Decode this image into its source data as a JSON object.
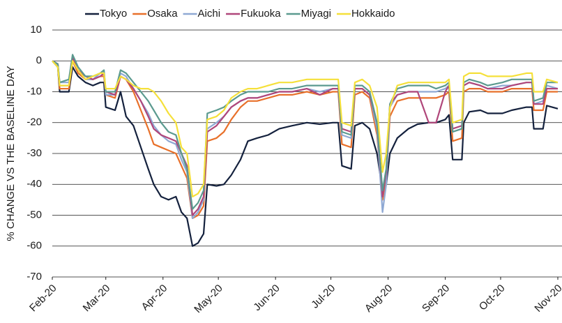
{
  "chart_data": {
    "type": "line",
    "y_label": "% CHANGE VS THE BASELINE DAY",
    "x": [
      0,
      3,
      4,
      9,
      11,
      14,
      18,
      22,
      26,
      28,
      29,
      34,
      37,
      40,
      44,
      48,
      52,
      55,
      59,
      63,
      67,
      70,
      73,
      76,
      79,
      82,
      84,
      89,
      93,
      97,
      102,
      106,
      111,
      117,
      123,
      130,
      138,
      145,
      152,
      155,
      157,
      162,
      164,
      168,
      172,
      176,
      179,
      181,
      183,
      187,
      193,
      198,
      204,
      208,
      213,
      215,
      217,
      222,
      223,
      226,
      232,
      236,
      244,
      249,
      257,
      260,
      261,
      266,
      268,
      274
    ],
    "xlim": [
      0,
      274
    ],
    "xticks": [
      {
        "value": 0,
        "label": "Feb-20"
      },
      {
        "value": 29,
        "label": "Mar-20"
      },
      {
        "value": 60,
        "label": "Apr-20"
      },
      {
        "value": 90,
        "label": "May-20"
      },
      {
        "value": 121,
        "label": "Jun-20"
      },
      {
        "value": 151,
        "label": "Jul-20"
      },
      {
        "value": 182,
        "label": "Aug-20"
      },
      {
        "value": 213,
        "label": "Sep-20"
      },
      {
        "value": 243,
        "label": "Oct-20"
      },
      {
        "value": 274,
        "label": "Nov-20"
      }
    ],
    "ylim": [
      -70,
      10
    ],
    "yticks": [
      -70,
      -60,
      -50,
      -40,
      -30,
      -20,
      -10,
      0,
      10
    ],
    "grid": true,
    "legend": "top",
    "series": [
      {
        "name": "Tokyo",
        "color": "#14213d",
        "values": [
          0,
          -2,
          -10,
          -10,
          -2,
          -5,
          -7,
          -8,
          -7,
          -7,
          -15,
          -16,
          -10,
          -18,
          -21,
          -28,
          -35,
          -40,
          -44,
          -45,
          -44,
          -49,
          -51,
          -60,
          -59,
          -56,
          -40,
          -40.5,
          -40,
          -37,
          -32,
          -26,
          -25,
          -24,
          -22,
          -21,
          -20,
          -20.5,
          -20,
          -20,
          -34,
          -35,
          -21,
          -20,
          -22,
          -30,
          -42,
          -40,
          -30,
          -25,
          -22,
          -20.5,
          -20,
          -20,
          -19,
          -17.5,
          -32,
          -32,
          -20,
          -16.5,
          -16,
          -17,
          -17,
          -16,
          -15,
          -15,
          -22,
          -22,
          -14.5,
          -15.5
        ]
      },
      {
        "name": "Osaka",
        "color": "#e8702a",
        "values": [
          0,
          -1,
          -9,
          -9,
          0,
          -4,
          -6,
          -6,
          -5,
          -5,
          -11,
          -12,
          -5,
          -6,
          -10,
          -16,
          -22,
          -27,
          -28,
          -29,
          -30,
          -34,
          -38,
          -51,
          -50,
          -47,
          -26,
          -25,
          -23,
          -19,
          -15,
          -13,
          -13,
          -12,
          -11,
          -11,
          -10,
          -11,
          -10,
          -10,
          -27,
          -28,
          -11,
          -10,
          -12,
          -24,
          -45,
          -38,
          -18,
          -13,
          -12,
          -12,
          -12,
          -12,
          -11,
          -10,
          -26,
          -25,
          -10,
          -9,
          -9,
          -10,
          -10,
          -9,
          -9,
          -9,
          -16,
          -16,
          -10,
          -10
        ]
      },
      {
        "name": "Aichi",
        "color": "#8fa9d4",
        "values": [
          0,
          -1,
          -7,
          -7,
          1,
          -3,
          -6,
          -6,
          -4,
          -4,
          -11,
          -11,
          -4,
          -5,
          -9,
          -13,
          -17,
          -21,
          -24,
          -26,
          -27,
          -32,
          -36,
          -51,
          -49,
          -45,
          -22,
          -20,
          -18,
          -15,
          -13,
          -12,
          -12,
          -11,
          -10,
          -10,
          -9,
          -10,
          -9,
          -9,
          -24,
          -25,
          -9,
          -9,
          -11,
          -22,
          -49,
          -40,
          -15,
          -11,
          -10,
          -10,
          -10,
          -10,
          -9,
          -8,
          -23,
          -22,
          -8,
          -7,
          -8,
          -9,
          -8,
          -8,
          -7,
          -7,
          -14,
          -13,
          -8,
          -9
        ]
      },
      {
        "name": "Fukuoka",
        "color": "#b0467a",
        "values": [
          0,
          -1,
          -8,
          -8,
          1,
          -3,
          -5,
          -6,
          -5,
          -4,
          -10,
          -11,
          -5,
          -6,
          -9,
          -13,
          -18,
          -22,
          -24,
          -25,
          -26,
          -30,
          -34,
          -50,
          -48,
          -44,
          -23,
          -21,
          -18,
          -15,
          -13,
          -12,
          -12,
          -11,
          -10,
          -10,
          -9,
          -11,
          -9,
          -9,
          -22,
          -23,
          -9,
          -9,
          -11,
          -20,
          -44,
          -36,
          -14,
          -11,
          -10,
          -10,
          -20,
          -20,
          -10,
          -8,
          -22,
          -21,
          -8,
          -7,
          -8,
          -9,
          -9,
          -8,
          -7,
          -7,
          -14,
          -14,
          -9,
          -9
        ]
      },
      {
        "name": "Miyagi",
        "color": "#5b9a8f",
        "values": [
          0,
          -1,
          -7,
          -6,
          2,
          -2,
          -5,
          -5,
          -4,
          -3,
          -10,
          -10,
          -3,
          -4,
          -7,
          -10,
          -13,
          -16,
          -20,
          -23,
          -24,
          -30,
          -35,
          -48,
          -46,
          -42,
          -17,
          -16,
          -15,
          -13,
          -11,
          -10,
          -10,
          -10,
          -9,
          -9,
          -8,
          -8,
          -8,
          -8,
          -23,
          -24,
          -8,
          -8,
          -10,
          -20,
          -42,
          -35,
          -14,
          -9,
          -8,
          -8,
          -8,
          -9,
          -8,
          -7,
          -23,
          -22,
          -7,
          -6,
          -7,
          -8,
          -7,
          -6,
          -6,
          -6,
          -13,
          -12,
          -7,
          -7
        ]
      },
      {
        "name": "Hokkaido",
        "color": "#f5e03a",
        "values": [
          0,
          -2,
          -8,
          -8,
          0,
          -3,
          -6,
          -5,
          -4,
          -4,
          -9,
          -9,
          -5,
          -6,
          -8,
          -9,
          -9,
          -10,
          -13,
          -17,
          -20,
          -28,
          -30,
          -44,
          -43,
          -40,
          -19,
          -18,
          -16,
          -12,
          -10,
          -9,
          -9,
          -8,
          -7,
          -7,
          -6,
          -6,
          -6,
          -6,
          -20,
          -21,
          -7,
          -6,
          -8,
          -15,
          -36,
          -30,
          -15,
          -8,
          -7,
          -7,
          -7,
          -7,
          -7,
          -6,
          -20,
          -19,
          -5,
          -4,
          -4,
          -5,
          -5,
          -5,
          -4,
          -4,
          -10,
          -10,
          -6,
          -7
        ]
      }
    ]
  }
}
